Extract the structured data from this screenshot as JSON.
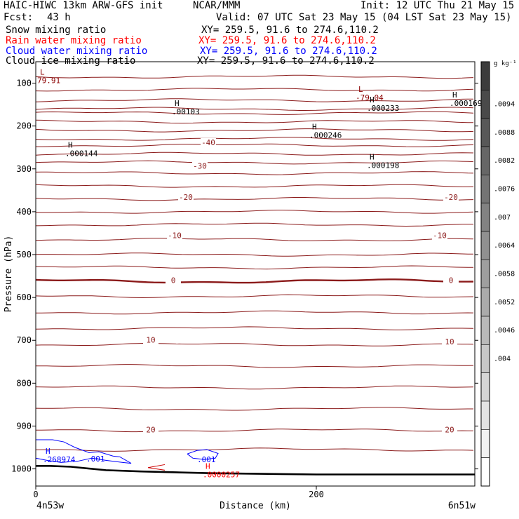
{
  "header": {
    "title_left": "HAIC-HIWC 13km ARW-GFS init",
    "title_mid": "NCAR/MMM",
    "init": "Init: 12 UTC Thu 21 May 15",
    "fcst_label": "Fcst:",
    "fcst_value": "43 h",
    "valid": "Valid: 07 UTC Sat 23 May 15 (04 LST Sat 23 May 15)"
  },
  "fields": [
    {
      "name": "Snow mixing ratio",
      "xy": "XY= 259.5, 91.6 to 274.6,110.2",
      "color": "#000000"
    },
    {
      "name": "Rain water mixing ratio",
      "xy": "XY= 259.5, 91.6 to 274.6,110.2",
      "color": "#ff0000"
    },
    {
      "name": "Cloud water mixing ratio",
      "xy": "XY= 259.5, 91.6 to 274.6,110.2",
      "color": "#0000ff"
    },
    {
      "name": "Cloud ice mixing ratio",
      "xy": "XY= 259.5, 91.6 to 274.6,110.2",
      "color": "#000000"
    }
  ],
  "chart_data": {
    "type": "line",
    "xlabel": "Distance (km)",
    "ylabel": "Pressure (hPa)",
    "xlim": [
      0,
      313
    ],
    "ylim": [
      1040,
      50
    ],
    "x_ticks": [
      0,
      200
    ],
    "y_ticks": [
      100,
      200,
      300,
      400,
      500,
      600,
      700,
      800,
      900,
      1000
    ],
    "x_endpoints": {
      "left": "4n53w",
      "right": "6n51w"
    },
    "colorbar": {
      "unit": "g kg⁻¹",
      "tick_labels": [
        ".0094",
        ".0088",
        ".0082",
        ".0076",
        ".007",
        ".0064",
        ".0058",
        ".0052",
        ".0046",
        ".004"
      ],
      "levels": 15
    },
    "temperature_contour_labels": [
      {
        "value": "-40",
        "x": 123,
        "p": 238
      },
      {
        "value": "-30",
        "x": 117,
        "p": 293
      },
      {
        "value": "-20",
        "x": 107,
        "p": 366
      },
      {
        "value": "-20",
        "x": 296,
        "p": 366
      },
      {
        "value": "-10",
        "x": 99,
        "p": 455
      },
      {
        "value": "-10",
        "x": 288,
        "p": 455
      },
      {
        "value": "0",
        "x": 98,
        "p": 560
      },
      {
        "value": "0",
        "x": 296,
        "p": 560
      },
      {
        "value": "10",
        "x": 82,
        "p": 699
      },
      {
        "value": "10",
        "x": 295,
        "p": 703
      },
      {
        "value": "20",
        "x": 82,
        "p": 908
      },
      {
        "value": "20",
        "x": 295,
        "p": 908
      }
    ],
    "extrema": [
      {
        "type": "L",
        "value": "79.91",
        "x": 1,
        "p": 85,
        "color": "#8b0000"
      },
      {
        "type": "L",
        "value": "-79.04",
        "x": 228,
        "p": 125,
        "color": "#8b0000"
      },
      {
        "type": "H",
        "value": ".00103",
        "x": 97,
        "p": 158,
        "color": "#000000"
      },
      {
        "type": "H",
        "value": ".000233",
        "x": 236,
        "p": 150,
        "color": "#000000"
      },
      {
        "type": "H",
        "value": ".000169",
        "x": 295,
        "p": 138,
        "color": "#000000"
      },
      {
        "type": "H",
        "value": ".000144",
        "x": 21,
        "p": 255,
        "color": "#000000"
      },
      {
        "type": "H",
        "value": ".000246",
        "x": 195,
        "p": 213,
        "color": "#000000"
      },
      {
        "type": "H",
        "value": ".000198",
        "x": 236,
        "p": 283,
        "color": "#000000"
      },
      {
        "type": "H",
        "value": ".268974",
        "x": 5,
        "p": 970,
        "color": "#0000ff"
      },
      {
        "type": "",
        "value": ".001",
        "x": 36,
        "p": 968,
        "color": "#0000ff"
      },
      {
        "type": "",
        "value": ".001",
        "x": 115,
        "p": 970,
        "color": "#0000ff"
      },
      {
        "type": "H",
        "value": ".0000257",
        "x": 119,
        "p": 1005,
        "color": "#ff0000"
      }
    ],
    "series": [
      {
        "name": "Snow mixing ratio",
        "values": []
      },
      {
        "name": "Rain water mixing ratio",
        "values": []
      },
      {
        "name": "Cloud water mixing ratio",
        "values": []
      },
      {
        "name": "Cloud ice mixing ratio",
        "values": []
      }
    ],
    "isotherm_pressures": [
      85,
      115,
      140,
      160,
      170,
      190,
      210,
      230,
      245,
      265,
      285,
      310,
      340,
      370,
      400,
      430,
      465,
      500,
      530,
      562,
      597,
      635,
      672,
      710,
      760,
      810,
      860,
      910,
      955
    ],
    "terrain": {
      "x": [
        0,
        10,
        25,
        50,
        75,
        100,
        125,
        150,
        175,
        200,
        225,
        250,
        275,
        300,
        313
      ],
      "p": [
        993,
        993,
        995,
        1003,
        1006,
        1008,
        1010,
        1011,
        1012,
        1013,
        1013,
        1013,
        1013,
        1013,
        1013
      ]
    },
    "cloud_water_outline": {
      "x": [
        0,
        12,
        20,
        28,
        38,
        45,
        55,
        60,
        68,
        62,
        50,
        40,
        30,
        18,
        8,
        0
      ],
      "p": [
        932,
        932,
        937,
        950,
        962,
        960,
        970,
        972,
        987,
        985,
        980,
        975,
        982,
        985,
        980,
        975
      ]
    },
    "cloud_water_blob": {
      "x": [
        108,
        115,
        122,
        130,
        128,
        120,
        112,
        108
      ],
      "p": [
        965,
        957,
        955,
        964,
        975,
        978,
        975,
        965
      ]
    },
    "grid": false,
    "legend_placement": "top-left"
  }
}
